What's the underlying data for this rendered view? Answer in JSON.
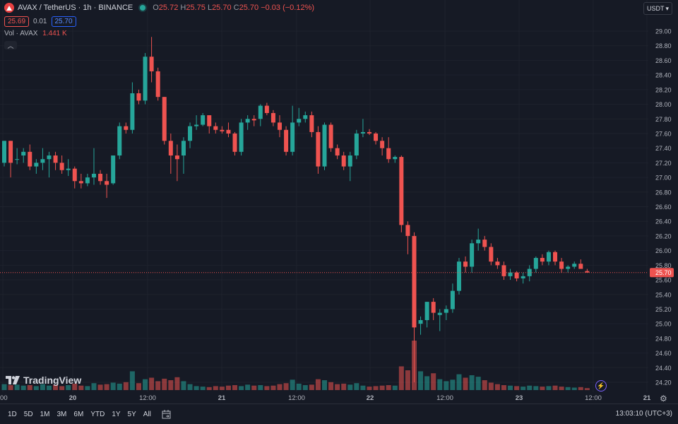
{
  "header": {
    "symbol": "AVAX / TetherUS · 1h · BINANCE",
    "o_label": "O",
    "o_value": "25.72",
    "h_label": "H",
    "h_value": "25.75",
    "l_label": "L",
    "l_value": "25.70",
    "c_label": "C",
    "c_value": "25.70",
    "change": "−0.03 (−0.12%)",
    "currency_button": "USDT"
  },
  "trade": {
    "sell_price": "25.69",
    "spread": "0.01",
    "buy_price": "25.70"
  },
  "volume_legend": {
    "label": "Vol · AVAX",
    "value": "1.441 K"
  },
  "last_price_label": "25.70",
  "brand": "TradingView",
  "bottom_bar": {
    "ranges": [
      "1D",
      "5D",
      "1M",
      "3M",
      "6M",
      "YTD",
      "1Y",
      "5Y",
      "All"
    ],
    "clock": "13:03:10 (UTC+3)"
  },
  "colors": {
    "up": "#26a69a",
    "down": "#ef5350",
    "background": "#161a25",
    "grid": "#1e222d",
    "text": "#b2b5be"
  },
  "icons": {
    "symbol": "avax-logo-icon",
    "status": "market-open-dot-icon",
    "collapse": "chevron-up-icon",
    "currency": "chevron-down-icon",
    "calendar": "calendar-goto-icon",
    "alert": "lightning-icon",
    "settings": "gear-icon"
  },
  "chart_data": {
    "type": "candlestick",
    "title": "AVAX / TetherUS · 1h · BINANCE",
    "y_ticks": [
      "29.00",
      "28.80",
      "28.60",
      "28.40",
      "28.20",
      "28.00",
      "27.80",
      "27.60",
      "27.40",
      "27.20",
      "27.00",
      "26.80",
      "26.60",
      "26.40",
      "26.20",
      "26.00",
      "25.80",
      "25.60",
      "25.40",
      "25.20",
      "25.00",
      "24.80",
      "24.60",
      "24.40",
      "24.20"
    ],
    "ylim": [
      24.1,
      29.05
    ],
    "x_tick_labels": [
      ":00",
      "20",
      "12:00",
      "21",
      "12:00",
      "22",
      "12:00",
      "23",
      "12:00",
      "21"
    ],
    "last_price": 25.7,
    "candles": [
      {
        "o": 27.2,
        "h": 27.5,
        "l": 27.15,
        "c": 27.5,
        "v": 12
      },
      {
        "o": 27.5,
        "h": 27.5,
        "l": 27.0,
        "c": 27.2,
        "v": 10
      },
      {
        "o": 27.25,
        "h": 27.4,
        "l": 27.18,
        "c": 27.25,
        "v": 11
      },
      {
        "o": 27.3,
        "h": 27.4,
        "l": 27.2,
        "c": 27.35,
        "v": 9
      },
      {
        "o": 27.35,
        "h": 27.45,
        "l": 27.1,
        "c": 27.15,
        "v": 10
      },
      {
        "o": 27.15,
        "h": 27.25,
        "l": 27.05,
        "c": 27.2,
        "v": 8
      },
      {
        "o": 27.2,
        "h": 27.4,
        "l": 27.1,
        "c": 27.25,
        "v": 12
      },
      {
        "o": 27.25,
        "h": 27.35,
        "l": 27.0,
        "c": 27.3,
        "v": 9
      },
      {
        "o": 27.3,
        "h": 27.35,
        "l": 27.1,
        "c": 27.2,
        "v": 11
      },
      {
        "o": 27.2,
        "h": 27.3,
        "l": 27.05,
        "c": 27.1,
        "v": 8
      },
      {
        "o": 27.1,
        "h": 27.25,
        "l": 27.02,
        "c": 27.12,
        "v": 10
      },
      {
        "o": 27.12,
        "h": 27.15,
        "l": 26.85,
        "c": 26.95,
        "v": 13
      },
      {
        "o": 26.95,
        "h": 27.05,
        "l": 26.85,
        "c": 26.92,
        "v": 9
      },
      {
        "o": 26.92,
        "h": 27.05,
        "l": 26.88,
        "c": 27.0,
        "v": 8
      },
      {
        "o": 27.0,
        "h": 27.4,
        "l": 26.9,
        "c": 27.05,
        "v": 14
      },
      {
        "o": 27.05,
        "h": 27.1,
        "l": 26.9,
        "c": 26.95,
        "v": 11
      },
      {
        "o": 26.95,
        "h": 27.05,
        "l": 26.72,
        "c": 26.9,
        "v": 12
      },
      {
        "o": 26.92,
        "h": 27.3,
        "l": 26.9,
        "c": 27.3,
        "v": 15
      },
      {
        "o": 27.3,
        "h": 27.75,
        "l": 27.25,
        "c": 27.7,
        "v": 13
      },
      {
        "o": 27.7,
        "h": 27.75,
        "l": 27.6,
        "c": 27.65,
        "v": 16
      },
      {
        "o": 27.65,
        "h": 28.3,
        "l": 27.6,
        "c": 28.15,
        "v": 38
      },
      {
        "o": 28.15,
        "h": 28.2,
        "l": 28.0,
        "c": 28.05,
        "v": 14
      },
      {
        "o": 28.05,
        "h": 28.7,
        "l": 28.0,
        "c": 28.65,
        "v": 22
      },
      {
        "o": 28.65,
        "h": 28.92,
        "l": 28.3,
        "c": 28.45,
        "v": 25
      },
      {
        "o": 28.45,
        "h": 28.5,
        "l": 28.05,
        "c": 28.1,
        "v": 18
      },
      {
        "o": 28.1,
        "h": 28.1,
        "l": 27.45,
        "c": 27.5,
        "v": 23
      },
      {
        "o": 27.5,
        "h": 27.6,
        "l": 27.05,
        "c": 27.3,
        "v": 20
      },
      {
        "o": 27.3,
        "h": 27.45,
        "l": 26.95,
        "c": 27.25,
        "v": 26
      },
      {
        "o": 27.3,
        "h": 27.55,
        "l": 27.05,
        "c": 27.5,
        "v": 18
      },
      {
        "o": 27.5,
        "h": 27.75,
        "l": 27.4,
        "c": 27.7,
        "v": 12
      },
      {
        "o": 27.7,
        "h": 27.85,
        "l": 27.65,
        "c": 27.72,
        "v": 8
      },
      {
        "o": 27.72,
        "h": 27.88,
        "l": 27.7,
        "c": 27.85,
        "v": 7
      },
      {
        "o": 27.85,
        "h": 27.85,
        "l": 27.6,
        "c": 27.7,
        "v": 6
      },
      {
        "o": 27.7,
        "h": 27.75,
        "l": 27.6,
        "c": 27.65,
        "v": 8
      },
      {
        "o": 27.65,
        "h": 27.7,
        "l": 27.6,
        "c": 27.63,
        "v": 7
      },
      {
        "o": 27.65,
        "h": 27.75,
        "l": 27.55,
        "c": 27.6,
        "v": 9
      },
      {
        "o": 27.6,
        "h": 27.62,
        "l": 27.3,
        "c": 27.35,
        "v": 10
      },
      {
        "o": 27.35,
        "h": 27.8,
        "l": 27.3,
        "c": 27.75,
        "v": 8
      },
      {
        "o": 27.75,
        "h": 27.85,
        "l": 27.65,
        "c": 27.8,
        "v": 11
      },
      {
        "o": 27.8,
        "h": 27.85,
        "l": 27.7,
        "c": 27.78,
        "v": 9
      },
      {
        "o": 27.8,
        "h": 28.0,
        "l": 27.7,
        "c": 27.98,
        "v": 10
      },
      {
        "o": 27.98,
        "h": 28.02,
        "l": 27.85,
        "c": 27.88,
        "v": 8
      },
      {
        "o": 27.88,
        "h": 27.92,
        "l": 27.7,
        "c": 27.75,
        "v": 9
      },
      {
        "o": 27.75,
        "h": 27.85,
        "l": 27.55,
        "c": 27.65,
        "v": 12
      },
      {
        "o": 27.65,
        "h": 27.7,
        "l": 27.3,
        "c": 27.35,
        "v": 14
      },
      {
        "o": 27.35,
        "h": 27.98,
        "l": 27.3,
        "c": 27.75,
        "v": 21
      },
      {
        "o": 27.75,
        "h": 27.95,
        "l": 27.7,
        "c": 27.8,
        "v": 13
      },
      {
        "o": 27.8,
        "h": 27.9,
        "l": 27.75,
        "c": 27.85,
        "v": 10
      },
      {
        "o": 27.85,
        "h": 27.9,
        "l": 27.55,
        "c": 27.62,
        "v": 11
      },
      {
        "o": 27.62,
        "h": 27.7,
        "l": 27.05,
        "c": 27.15,
        "v": 22
      },
      {
        "o": 27.15,
        "h": 27.75,
        "l": 27.1,
        "c": 27.72,
        "v": 20
      },
      {
        "o": 27.72,
        "h": 27.75,
        "l": 27.35,
        "c": 27.4,
        "v": 16
      },
      {
        "o": 27.4,
        "h": 27.45,
        "l": 27.25,
        "c": 27.3,
        "v": 12
      },
      {
        "o": 27.3,
        "h": 27.35,
        "l": 27.1,
        "c": 27.15,
        "v": 13
      },
      {
        "o": 27.15,
        "h": 27.35,
        "l": 26.95,
        "c": 27.3,
        "v": 11
      },
      {
        "o": 27.3,
        "h": 27.65,
        "l": 27.25,
        "c": 27.6,
        "v": 14
      },
      {
        "o": 27.6,
        "h": 27.8,
        "l": 27.55,
        "c": 27.62,
        "v": 9
      },
      {
        "o": 27.62,
        "h": 27.66,
        "l": 27.58,
        "c": 27.6,
        "v": 7
      },
      {
        "o": 27.6,
        "h": 27.62,
        "l": 27.45,
        "c": 27.5,
        "v": 8
      },
      {
        "o": 27.5,
        "h": 27.55,
        "l": 27.3,
        "c": 27.4,
        "v": 9
      },
      {
        "o": 27.4,
        "h": 27.55,
        "l": 27.2,
        "c": 27.25,
        "v": 10
      },
      {
        "o": 27.25,
        "h": 27.3,
        "l": 27.2,
        "c": 27.28,
        "v": 9
      },
      {
        "o": 27.28,
        "h": 27.3,
        "l": 26.25,
        "c": 26.35,
        "v": 48
      },
      {
        "o": 26.35,
        "h": 26.4,
        "l": 25.95,
        "c": 26.2,
        "v": 40
      },
      {
        "o": 26.2,
        "h": 26.25,
        "l": 24.2,
        "c": 24.95,
        "v": 100
      },
      {
        "o": 25.0,
        "h": 25.1,
        "l": 24.85,
        "c": 25.05,
        "v": 38
      },
      {
        "o": 25.05,
        "h": 25.3,
        "l": 24.95,
        "c": 25.3,
        "v": 28
      },
      {
        "o": 25.3,
        "h": 25.35,
        "l": 25.05,
        "c": 25.15,
        "v": 34
      },
      {
        "o": 25.12,
        "h": 25.2,
        "l": 24.9,
        "c": 25.15,
        "v": 22
      },
      {
        "o": 25.15,
        "h": 25.25,
        "l": 25.05,
        "c": 25.2,
        "v": 18
      },
      {
        "o": 25.2,
        "h": 25.55,
        "l": 25.15,
        "c": 25.45,
        "v": 21
      },
      {
        "o": 25.45,
        "h": 25.9,
        "l": 25.4,
        "c": 25.85,
        "v": 32
      },
      {
        "o": 25.85,
        "h": 25.92,
        "l": 25.7,
        "c": 25.78,
        "v": 25
      },
      {
        "o": 25.78,
        "h": 26.15,
        "l": 25.7,
        "c": 26.1,
        "v": 30
      },
      {
        "o": 26.1,
        "h": 26.3,
        "l": 26.0,
        "c": 26.15,
        "v": 27
      },
      {
        "o": 26.15,
        "h": 26.2,
        "l": 26.0,
        "c": 26.05,
        "v": 20
      },
      {
        "o": 26.05,
        "h": 26.1,
        "l": 25.8,
        "c": 25.85,
        "v": 15
      },
      {
        "o": 25.85,
        "h": 25.9,
        "l": 25.75,
        "c": 25.8,
        "v": 12
      },
      {
        "o": 25.8,
        "h": 25.85,
        "l": 25.6,
        "c": 25.65,
        "v": 10
      },
      {
        "o": 25.65,
        "h": 25.75,
        "l": 25.6,
        "c": 25.7,
        "v": 9
      },
      {
        "o": 25.7,
        "h": 25.72,
        "l": 25.58,
        "c": 25.62,
        "v": 8
      },
      {
        "o": 25.62,
        "h": 25.7,
        "l": 25.55,
        "c": 25.65,
        "v": 7
      },
      {
        "o": 25.65,
        "h": 25.8,
        "l": 25.58,
        "c": 25.75,
        "v": 9
      },
      {
        "o": 25.75,
        "h": 25.92,
        "l": 25.7,
        "c": 25.9,
        "v": 8
      },
      {
        "o": 25.9,
        "h": 25.95,
        "l": 25.8,
        "c": 25.85,
        "v": 7
      },
      {
        "o": 25.85,
        "h": 26.0,
        "l": 25.8,
        "c": 25.98,
        "v": 8
      },
      {
        "o": 25.98,
        "h": 26.0,
        "l": 25.8,
        "c": 25.85,
        "v": 9
      },
      {
        "o": 25.85,
        "h": 25.9,
        "l": 25.7,
        "c": 25.75,
        "v": 7
      },
      {
        "o": 25.75,
        "h": 25.8,
        "l": 25.7,
        "c": 25.78,
        "v": 6
      },
      {
        "o": 25.78,
        "h": 25.85,
        "l": 25.75,
        "c": 25.82,
        "v": 5
      },
      {
        "o": 25.82,
        "h": 25.88,
        "l": 25.75,
        "c": 25.75,
        "v": 6
      },
      {
        "o": 25.72,
        "h": 25.75,
        "l": 25.7,
        "c": 25.7,
        "v": 4
      }
    ]
  }
}
